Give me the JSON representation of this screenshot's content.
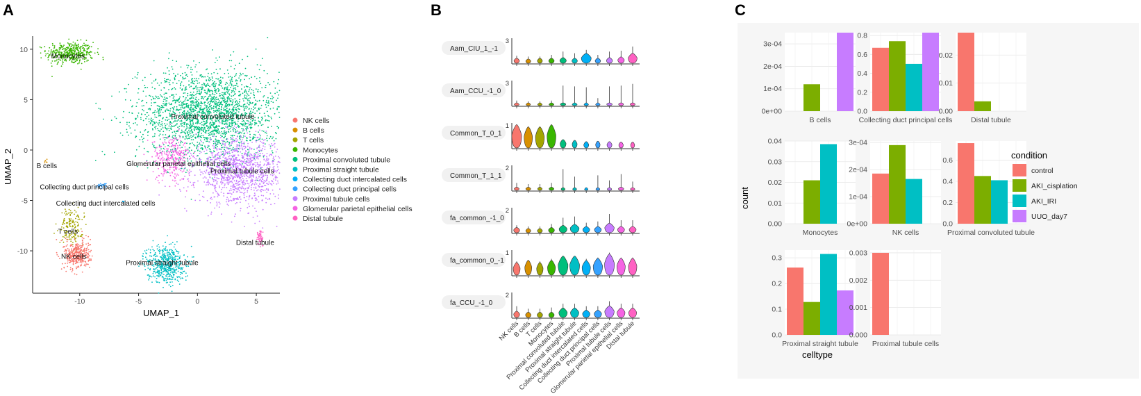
{
  "figure": {
    "panel_letters": [
      "A",
      "B",
      "C"
    ]
  },
  "chart_data": [
    {
      "type": "scatter",
      "panel": "A",
      "xlabel": "UMAP_1",
      "ylabel": "UMAP_2",
      "xlim": [
        -14,
        7
      ],
      "ylim": [
        -14.2,
        11.3
      ],
      "xticks": [
        -10,
        -5,
        0,
        5
      ],
      "yticks": [
        10,
        5,
        0,
        -5,
        -10
      ],
      "legend": [
        {
          "name": "NK cells",
          "color": "#F8766D"
        },
        {
          "name": "B cells",
          "color": "#D89000"
        },
        {
          "name": "T cells",
          "color": "#A3A500"
        },
        {
          "name": "Monocytes",
          "color": "#39B600"
        },
        {
          "name": "Proximal convoluted tubule",
          "color": "#00BF7D"
        },
        {
          "name": "Proximal straight tubule",
          "color": "#00BFC4"
        },
        {
          "name": "Collecting duct intercalated cells",
          "color": "#00B0F6"
        },
        {
          "name": "Collecting duct principal cells",
          "color": "#35A2FF"
        },
        {
          "name": "Proximal tubule cells",
          "color": "#C77CFF"
        },
        {
          "name": "Glomerular parietal epithelial cells",
          "color": "#F564E3"
        },
        {
          "name": "Distal tubule",
          "color": "#FF61C3"
        }
      ],
      "clusters": [
        {
          "label": "Monocytes",
          "color": "#39B600",
          "cx": -10.8,
          "cy": 9.6,
          "sx": 1.0,
          "sy": 0.55,
          "n": 420,
          "label_x": -11.0,
          "label_y": 9.1
        },
        {
          "label": "Proximal convoluted tubule",
          "color": "#00BF7D",
          "cx": 1.0,
          "cy": 3.6,
          "sx": 3.0,
          "sy": 2.2,
          "n": 2300,
          "label_x": 1.3,
          "label_y": 3.1
        },
        {
          "label": "Proximal tubule cells",
          "color": "#C77CFF",
          "cx": 3.6,
          "cy": -2.1,
          "sx": 1.9,
          "sy": 1.6,
          "n": 1300,
          "label_x": 3.8,
          "label_y": -2.3
        },
        {
          "label": "Glomerular parietal epithelial cells",
          "color": "#F564E3",
          "cx": -2.2,
          "cy": -0.8,
          "sx": 0.8,
          "sy": 1.1,
          "n": 320,
          "label_x": -1.6,
          "label_y": -1.6
        },
        {
          "label": "B cells",
          "color": "#D89000",
          "cx": -12.9,
          "cy": -1.1,
          "sx": 0.12,
          "sy": 0.12,
          "n": 6,
          "label_x": -12.8,
          "label_y": -1.8
        },
        {
          "label": "Collecting duct principal cells",
          "color": "#35A2FF",
          "cx": -8.0,
          "cy": -3.5,
          "sx": 0.25,
          "sy": 0.12,
          "n": 30,
          "label_x": -9.6,
          "label_y": -3.9
        },
        {
          "label": "Collecting duct intercalated cells",
          "color": "#00B0F6",
          "cx": -6.3,
          "cy": -5.1,
          "sx": 0.08,
          "sy": 0.06,
          "n": 6,
          "label_x": -7.8,
          "label_y": -5.5
        },
        {
          "label": "T cells",
          "color": "#A3A500",
          "cx": -10.7,
          "cy": -7.6,
          "sx": 0.5,
          "sy": 0.9,
          "n": 160,
          "label_x": -11.0,
          "label_y": -8.3
        },
        {
          "label": "NK cells",
          "color": "#F8766D",
          "cx": -10.2,
          "cy": -10.4,
          "sx": 0.55,
          "sy": 0.7,
          "n": 380,
          "label_x": -10.5,
          "label_y": -10.8
        },
        {
          "label": "Proximal straight tubule",
          "color": "#00BFC4",
          "cx": -2.7,
          "cy": -11.3,
          "sx": 0.8,
          "sy": 0.95,
          "n": 520,
          "label_x": -3.0,
          "label_y": -11.4
        },
        {
          "label": "Distal tubule",
          "color": "#FF61C3",
          "cx": 5.3,
          "cy": -8.7,
          "sx": 0.15,
          "sy": 0.45,
          "n": 55,
          "label_x": 4.9,
          "label_y": -9.4
        }
      ]
    },
    {
      "type": "violin",
      "panel": "B",
      "groups": [
        "NK cells",
        "B cells",
        "T cells",
        "Monocytes",
        "Proximal convoluted tubule",
        "Proximal straight tubule",
        "Collecting duct intercalated cells",
        "Collecting duct principal cells",
        "Proximal tubule cells",
        "Glomerular parietal epithelial cells",
        "Distal tubule"
      ],
      "colors": [
        "#F8766D",
        "#D89000",
        "#A3A500",
        "#39B600",
        "#00BF7D",
        "#00BFC4",
        "#00B0F6",
        "#35A2FF",
        "#C77CFF",
        "#F564E3",
        "#FF61C3"
      ],
      "rows": [
        {
          "feature": "Aam_CIU_1_-1",
          "ymax_label": "3",
          "ymax": 3,
          "medians": [
            0.35,
            0.3,
            0.35,
            0.35,
            0.4,
            0.35,
            0.7,
            0.35,
            0.4,
            0.45,
            0.7
          ],
          "widths": [
            0.55,
            0.5,
            0.5,
            0.55,
            0.65,
            0.55,
            1.0,
            0.55,
            0.6,
            0.65,
            0.9
          ],
          "tails": [
            0.9,
            0.8,
            0.8,
            1.0,
            1.4,
            1.2,
            1.6,
            1.0,
            1.4,
            1.5,
            2.0
          ]
        },
        {
          "feature": "Aam_CCU_-1_0",
          "ymax_label": "3",
          "ymax": 3,
          "medians": [
            0.15,
            0.15,
            0.15,
            0.15,
            0.2,
            0.15,
            0.15,
            0.15,
            0.2,
            0.2,
            0.2
          ],
          "widths": [
            0.5,
            0.45,
            0.45,
            0.5,
            0.55,
            0.5,
            0.45,
            0.45,
            0.55,
            0.5,
            0.5
          ],
          "tails": [
            0.6,
            0.5,
            0.5,
            0.6,
            2.4,
            2.3,
            2.2,
            0.9,
            2.3,
            2.4,
            2.6
          ]
        },
        {
          "feature": "Common_T_0_1",
          "ymax_label": "1",
          "ymax": 1,
          "medians": [
            0.55,
            0.5,
            0.5,
            0.55,
            0.2,
            0.18,
            0.15,
            0.16,
            0.15,
            0.14,
            0.14
          ],
          "widths": [
            1.0,
            0.85,
            0.9,
            0.9,
            0.6,
            0.5,
            0.5,
            0.45,
            0.5,
            0.45,
            0.4
          ],
          "tails": [
            0.75,
            0.65,
            0.7,
            0.75,
            0.3,
            0.28,
            0.25,
            0.25,
            0.25,
            0.22,
            0.2
          ]
        },
        {
          "feature": "Common_T_1_1",
          "ymax_label": "2",
          "ymax": 2,
          "medians": [
            0.15,
            0.15,
            0.15,
            0.15,
            0.12,
            0.12,
            0.1,
            0.12,
            0.12,
            0.15,
            0.12
          ],
          "widths": [
            0.5,
            0.5,
            0.45,
            0.5,
            0.4,
            0.4,
            0.35,
            0.4,
            0.45,
            0.55,
            0.45
          ],
          "tails": [
            0.6,
            0.5,
            0.5,
            0.6,
            1.7,
            1.1,
            0.2,
            1.2,
            0.8,
            1.3,
            0.7
          ]
        },
        {
          "feature": "fa_common_-1_0",
          "ymax_label": "2",
          "ymax": 2,
          "medians": [
            0.25,
            0.2,
            0.2,
            0.25,
            0.35,
            0.4,
            0.3,
            0.3,
            0.45,
            0.3,
            0.3
          ],
          "widths": [
            0.6,
            0.5,
            0.5,
            0.6,
            0.8,
            0.9,
            0.7,
            0.7,
            0.95,
            0.7,
            0.7
          ],
          "tails": [
            0.6,
            0.5,
            0.5,
            0.7,
            1.2,
            1.3,
            0.8,
            0.9,
            1.5,
            1.0,
            1.0
          ]
        },
        {
          "feature": "fa_common_0_-1",
          "ymax_label": "1",
          "ymax": 1,
          "medians": [
            0.3,
            0.35,
            0.3,
            0.35,
            0.45,
            0.45,
            0.35,
            0.4,
            0.5,
            0.4,
            0.4
          ],
          "widths": [
            0.7,
            0.7,
            0.65,
            0.8,
            1.0,
            1.0,
            0.85,
            0.95,
            1.0,
            0.85,
            0.85
          ],
          "tails": [
            0.55,
            0.6,
            0.55,
            0.65,
            0.75,
            0.75,
            0.65,
            0.7,
            0.9,
            0.7,
            0.7
          ]
        },
        {
          "feature": "fa_CCU_-1_0",
          "ymax_label": "2",
          "ymax": 2,
          "medians": [
            0.3,
            0.25,
            0.25,
            0.25,
            0.45,
            0.45,
            0.35,
            0.35,
            0.55,
            0.45,
            0.45
          ],
          "widths": [
            0.6,
            0.55,
            0.55,
            0.55,
            0.85,
            0.85,
            0.75,
            0.75,
            0.95,
            0.8,
            0.8
          ],
          "tails": [
            0.9,
            0.7,
            0.7,
            0.8,
            1.1,
            1.1,
            0.9,
            0.9,
            1.3,
            1.1,
            1.1
          ]
        }
      ]
    },
    {
      "type": "bar",
      "panel": "C",
      "xlabel": "celltype",
      "ylabel": "count",
      "legend_title": "condition",
      "conditions": [
        {
          "name": "control",
          "color": "#F8766D"
        },
        {
          "name": "AKI_cisplation",
          "color": "#7CAE00"
        },
        {
          "name": "AKI_IRI",
          "color": "#00BFC4"
        },
        {
          "name": "UUO_day7",
          "color": "#C77CFF"
        }
      ],
      "facets": [
        {
          "celltype": "B cells",
          "ylim": [
            0,
            0.00035
          ],
          "ticks": [
            0,
            0.0001,
            0.0002,
            0.0003
          ],
          "tick_labels": [
            "0e+00",
            "1e-04",
            "2e-04",
            "3e-04"
          ],
          "bars": [
            {
              "condition": "AKI_cisplation",
              "value": 0.00012
            },
            {
              "condition": "UUO_day7",
              "value": 0.00035
            }
          ]
        },
        {
          "celltype": "Collecting duct principal cells",
          "ylim": [
            0,
            0.83
          ],
          "ticks": [
            0,
            0.2,
            0.4,
            0.6,
            0.8
          ],
          "tick_labels": [
            "0.0",
            "0.2",
            "0.4",
            "0.6",
            "0.8"
          ],
          "bars": [
            {
              "condition": "control",
              "value": 0.67
            },
            {
              "condition": "AKI_cisplation",
              "value": 0.74
            },
            {
              "condition": "AKI_IRI",
              "value": 0.5
            },
            {
              "condition": "UUO_day7",
              "value": 0.83
            }
          ]
        },
        {
          "celltype": "Distal tubule",
          "ylim": [
            0,
            0.028
          ],
          "ticks": [
            0,
            0.01,
            0.02
          ],
          "tick_labels": [
            "0.00",
            "0.01",
            "0.02"
          ],
          "bars": [
            {
              "condition": "control",
              "value": 0.028
            },
            {
              "condition": "AKI_cisplation",
              "value": 0.0035
            }
          ]
        },
        {
          "celltype": "Monocytes",
          "ylim": [
            0,
            0.04
          ],
          "ticks": [
            0,
            0.01,
            0.02,
            0.03,
            0.04
          ],
          "tick_labels": [
            "0.00",
            "0.01",
            "0.02",
            "0.03",
            "0.04"
          ],
          "bars": [
            {
              "condition": "AKI_cisplation",
              "value": 0.021
            },
            {
              "condition": "AKI_IRI",
              "value": 0.0385
            }
          ]
        },
        {
          "celltype": "NK cells",
          "ylim": [
            0,
            0.000305
          ],
          "ticks": [
            0,
            0.0001,
            0.0002,
            0.0003
          ],
          "tick_labels": [
            "0e+00",
            "1e-04",
            "2e-04",
            "3e-04"
          ],
          "bars": [
            {
              "condition": "control",
              "value": 0.000185
            },
            {
              "condition": "AKI_cisplation",
              "value": 0.00029
            },
            {
              "condition": "AKI_IRI",
              "value": 0.000165
            }
          ]
        },
        {
          "celltype": "Proximal convoluted tubule",
          "ylim": [
            0,
            0.78
          ],
          "ticks": [
            0,
            0.2,
            0.4,
            0.6
          ],
          "tick_labels": [
            "0.0",
            "0.2",
            "0.4",
            "0.6"
          ],
          "bars": [
            {
              "condition": "control",
              "value": 0.76
            },
            {
              "condition": "AKI_cisplation",
              "value": 0.45
            },
            {
              "condition": "AKI_IRI",
              "value": 0.41
            }
          ]
        },
        {
          "celltype": "Proximal straight tubule",
          "ylim": [
            0,
            0.33
          ],
          "ticks": [
            0,
            0.1,
            0.2,
            0.3
          ],
          "tick_labels": [
            "0.0",
            "0.1",
            "0.2",
            "0.3"
          ],
          "bars": [
            {
              "condition": "control",
              "value": 0.262
            },
            {
              "condition": "AKI_cisplation",
              "value": 0.128
            },
            {
              "condition": "AKI_IRI",
              "value": 0.315
            },
            {
              "condition": "UUO_day7",
              "value": 0.173
            }
          ]
        },
        {
          "celltype": "Proximal tubule cells",
          "ylim": [
            0,
            0.0031
          ],
          "ticks": [
            0,
            0.001,
            0.002,
            0.003
          ],
          "tick_labels": [
            "0.000",
            "0.001",
            "0.002",
            "0.003"
          ],
          "bars": [
            {
              "condition": "control",
              "value": 0.003
            }
          ]
        }
      ]
    }
  ]
}
